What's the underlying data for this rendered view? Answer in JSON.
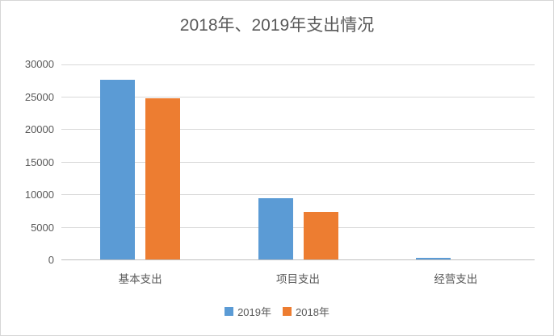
{
  "chart_data": {
    "type": "bar",
    "title": "2018年、2019年支出情况",
    "categories": [
      "基本支出",
      "项目支出",
      "经营支出"
    ],
    "series": [
      {
        "name": "2019年",
        "color": "#5B9BD5",
        "values": [
          27500,
          9400,
          300
        ]
      },
      {
        "name": "2018年",
        "color": "#ED7D31",
        "values": [
          24650,
          7350,
          0
        ]
      }
    ],
    "xlabel": "",
    "ylabel": "",
    "ylim": [
      0,
      30000
    ],
    "ytick_step": 5000,
    "ytick_labels": [
      "0",
      "5000",
      "10000",
      "15000",
      "20000",
      "25000",
      "30000"
    ],
    "grid": "horizontal",
    "legend_position": "bottom"
  },
  "colors": {
    "title_text": "#595959",
    "axis_text": "#595959",
    "gridline": "#D9D9D9",
    "axis_line": "#BFBFBF",
    "frame_border": "#D6D6D6",
    "background": "#FFFFFF"
  }
}
